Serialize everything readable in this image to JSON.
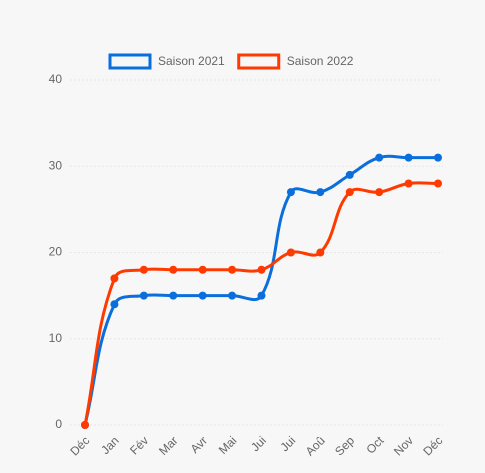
{
  "chart_data": {
    "type": "line",
    "categories": [
      "Déc",
      "Jan",
      "Fév",
      "Mar",
      "Avr",
      "Mai",
      "Jui",
      "Jui",
      "Aoû",
      "Sep",
      "Oct",
      "Nov",
      "Déc"
    ],
    "series": [
      {
        "name": "Saison 2021",
        "color": "#0a6fdc",
        "values": [
          0,
          14,
          15,
          15,
          15,
          15,
          15,
          27,
          27,
          29,
          31,
          31,
          31
        ]
      },
      {
        "name": "Saison 2022",
        "color": "#ff3a00",
        "values": [
          0,
          17,
          18,
          18,
          18,
          18,
          18,
          20,
          20,
          27,
          27,
          28,
          28
        ]
      }
    ],
    "ylim": [
      0,
      40
    ],
    "yticks": [
      0,
      10,
      20,
      30,
      40
    ],
    "grid": true,
    "legend": "top"
  }
}
